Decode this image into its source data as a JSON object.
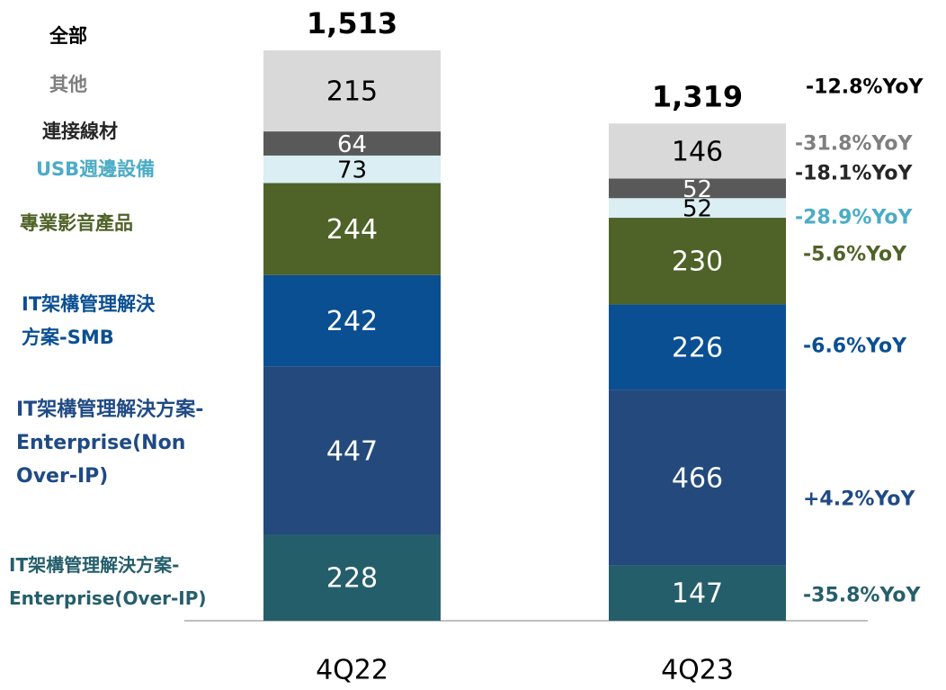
{
  "chart_data": {
    "type": "stacked_bar",
    "categories": [
      "4Q22",
      "4Q23"
    ],
    "series": [
      {
        "name": "IT架構管理解決方案-Enterprise(Over-IP)",
        "color": "#255e6b",
        "text_color": "#255e6b",
        "values": [
          228,
          147
        ],
        "annotation": "-35.8%YoY"
      },
      {
        "name": "IT架構管理解決方案-Enterprise(Non Over-IP)",
        "color": "#23497d",
        "text_color": "#1f4a85",
        "values": [
          447,
          466
        ],
        "annotation": "+4.2%YoY"
      },
      {
        "name": "IT架構管理解決方案-SMB",
        "color": "#0a4f92",
        "text_color": "#0a4f92",
        "values": [
          242,
          226
        ],
        "annotation": "-6.6%YoY"
      },
      {
        "name": "專業影音產品",
        "color": "#4f6228",
        "text_color": "#4f6228",
        "values": [
          244,
          230
        ],
        "annotation": "-5.6%YoY"
      },
      {
        "name": "USB週邊設備",
        "color": "#daeef3",
        "text_color": "#4bacc6",
        "values": [
          73,
          52
        ],
        "annotation": "-28.9%YoY"
      },
      {
        "name": "連接線材",
        "color": "#595959",
        "text_color": "#262626",
        "values": [
          64,
          52
        ],
        "annotation": "-18.1%YoY"
      },
      {
        "name": "其他",
        "color": "#d9d9d9",
        "text_color": "#7f7f7f",
        "values": [
          215,
          146
        ],
        "annotation": "-31.8%YoY"
      }
    ],
    "totals": {
      "name": "全部",
      "values": [
        1513,
        1319
      ],
      "value_labels": [
        "1,513",
        "1,319"
      ],
      "annotation": "-12.8%YoY"
    }
  }
}
